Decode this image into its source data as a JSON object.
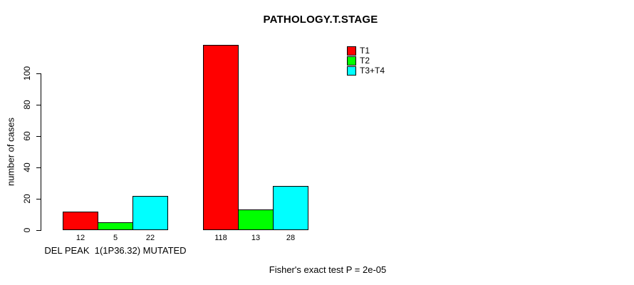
{
  "chart_data": {
    "type": "bar",
    "title": "PATHOLOGY.T.STAGE",
    "ylabel": "number of cases",
    "xlabel": "",
    "categories": [
      "DEL PEAK  1(1P36.32) MUTATED",
      ""
    ],
    "series": [
      {
        "name": "T1",
        "color": "#FF0000",
        "values": [
          12,
          118
        ]
      },
      {
        "name": "T2",
        "color": "#00FF00",
        "values": [
          5,
          13
        ]
      },
      {
        "name": "T3+T4",
        "color": "#00FFFF",
        "values": [
          22,
          28
        ]
      }
    ],
    "bar_value_labels": [
      [
        "12",
        "5",
        "22"
      ],
      [
        "118",
        "13",
        "28"
      ]
    ],
    "y_ticks": [
      0,
      20,
      40,
      60,
      80,
      100
    ],
    "ylim": [
      0,
      120
    ],
    "grid": false,
    "legend": {
      "position": "top-right",
      "entries": [
        "T1",
        "T2",
        "T3+T4"
      ]
    },
    "annotation": "Fisher's exact test P = 2e-05"
  },
  "colors": {
    "background": "#FFFFFF",
    "axis": "#000000",
    "text": "#000000"
  }
}
